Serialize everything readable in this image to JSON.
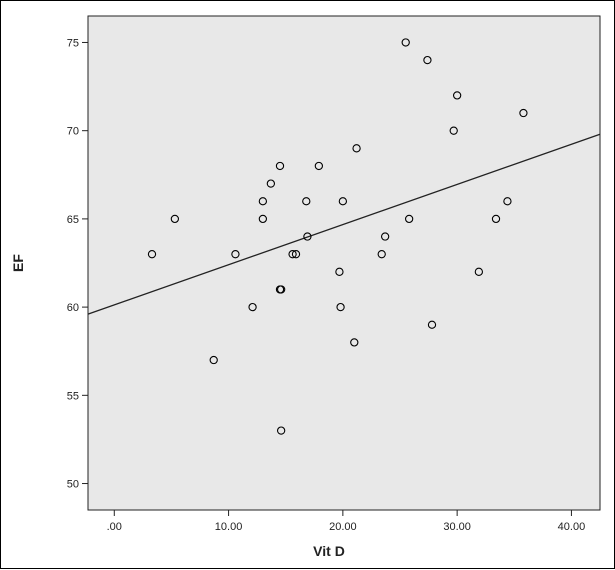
{
  "chart_data": {
    "type": "scatter",
    "xlabel": "Vit D",
    "ylabel": "EF",
    "xlim": [
      -2.3,
      42.5
    ],
    "ylim": [
      48.5,
      76.5
    ],
    "xticks": [
      0,
      10,
      20,
      30,
      40
    ],
    "xtick_labels": [
      ".00",
      "10.00",
      "20.00",
      "30.00",
      "40.00"
    ],
    "yticks": [
      50,
      55,
      60,
      65,
      70,
      75
    ],
    "ytick_labels": [
      "50",
      "55",
      "60",
      "65",
      "70",
      "75"
    ],
    "grid": false,
    "plot_background": "#e8e8e8",
    "marker_color": "#000000",
    "points": [
      {
        "x": 3.3,
        "y": 63
      },
      {
        "x": 5.3,
        "y": 65
      },
      {
        "x": 8.7,
        "y": 57
      },
      {
        "x": 10.6,
        "y": 63
      },
      {
        "x": 12.1,
        "y": 60
      },
      {
        "x": 13.0,
        "y": 66
      },
      {
        "x": 13.0,
        "y": 65
      },
      {
        "x": 13.7,
        "y": 67
      },
      {
        "x": 14.5,
        "y": 68
      },
      {
        "x": 14.5,
        "y": 61
      },
      {
        "x": 14.6,
        "y": 61
      },
      {
        "x": 14.6,
        "y": 53
      },
      {
        "x": 15.6,
        "y": 63
      },
      {
        "x": 15.9,
        "y": 63
      },
      {
        "x": 16.8,
        "y": 66
      },
      {
        "x": 16.9,
        "y": 64
      },
      {
        "x": 17.9,
        "y": 68
      },
      {
        "x": 19.7,
        "y": 62
      },
      {
        "x": 19.8,
        "y": 60
      },
      {
        "x": 20.0,
        "y": 66
      },
      {
        "x": 21.0,
        "y": 58
      },
      {
        "x": 21.2,
        "y": 69
      },
      {
        "x": 23.4,
        "y": 63
      },
      {
        "x": 23.7,
        "y": 64
      },
      {
        "x": 25.5,
        "y": 75
      },
      {
        "x": 25.8,
        "y": 65
      },
      {
        "x": 27.4,
        "y": 74
      },
      {
        "x": 27.8,
        "y": 59
      },
      {
        "x": 29.7,
        "y": 70
      },
      {
        "x": 30.0,
        "y": 72
      },
      {
        "x": 31.9,
        "y": 62
      },
      {
        "x": 33.4,
        "y": 65
      },
      {
        "x": 34.4,
        "y": 66
      },
      {
        "x": 35.8,
        "y": 71
      }
    ],
    "fit_line": {
      "x": [
        -2.3,
        42.5
      ],
      "y": [
        59.6,
        69.8
      ]
    }
  }
}
